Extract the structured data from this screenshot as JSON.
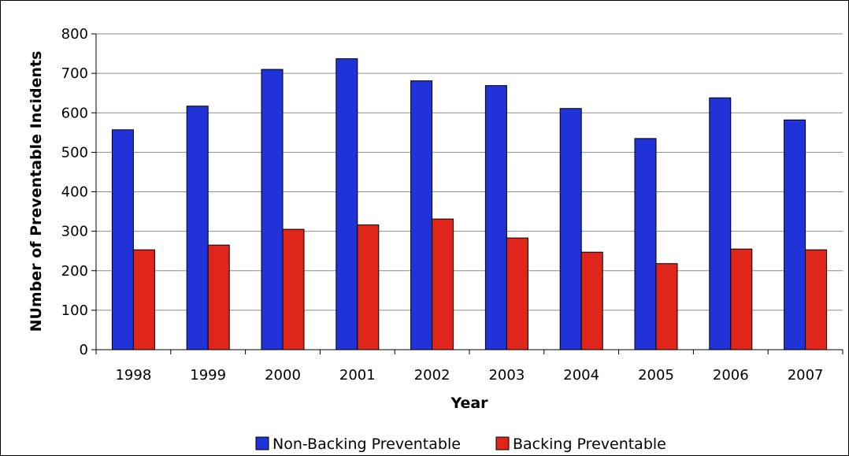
{
  "chart_data": {
    "type": "bar",
    "title": "",
    "xlabel": "Year",
    "ylabel": "NUmber of Preventable Incidents",
    "categories": [
      "1998",
      "1999",
      "2000",
      "2001",
      "2002",
      "2003",
      "2004",
      "2005",
      "2006",
      "2007"
    ],
    "series": [
      {
        "name": "Non-Backing Preventable",
        "color": "#1f33d9",
        "values": [
          557,
          617,
          710,
          737,
          681,
          669,
          611,
          535,
          638,
          582
        ]
      },
      {
        "name": "Backing Preventable",
        "color": "#e0251b",
        "values": [
          253,
          265,
          305,
          316,
          331,
          283,
          247,
          218,
          255,
          253
        ]
      }
    ],
    "ylim": [
      0,
      800
    ],
    "yticks": [
      0,
      100,
      200,
      300,
      400,
      500,
      600,
      700,
      800
    ],
    "grid": true,
    "legend_position": "bottom"
  }
}
